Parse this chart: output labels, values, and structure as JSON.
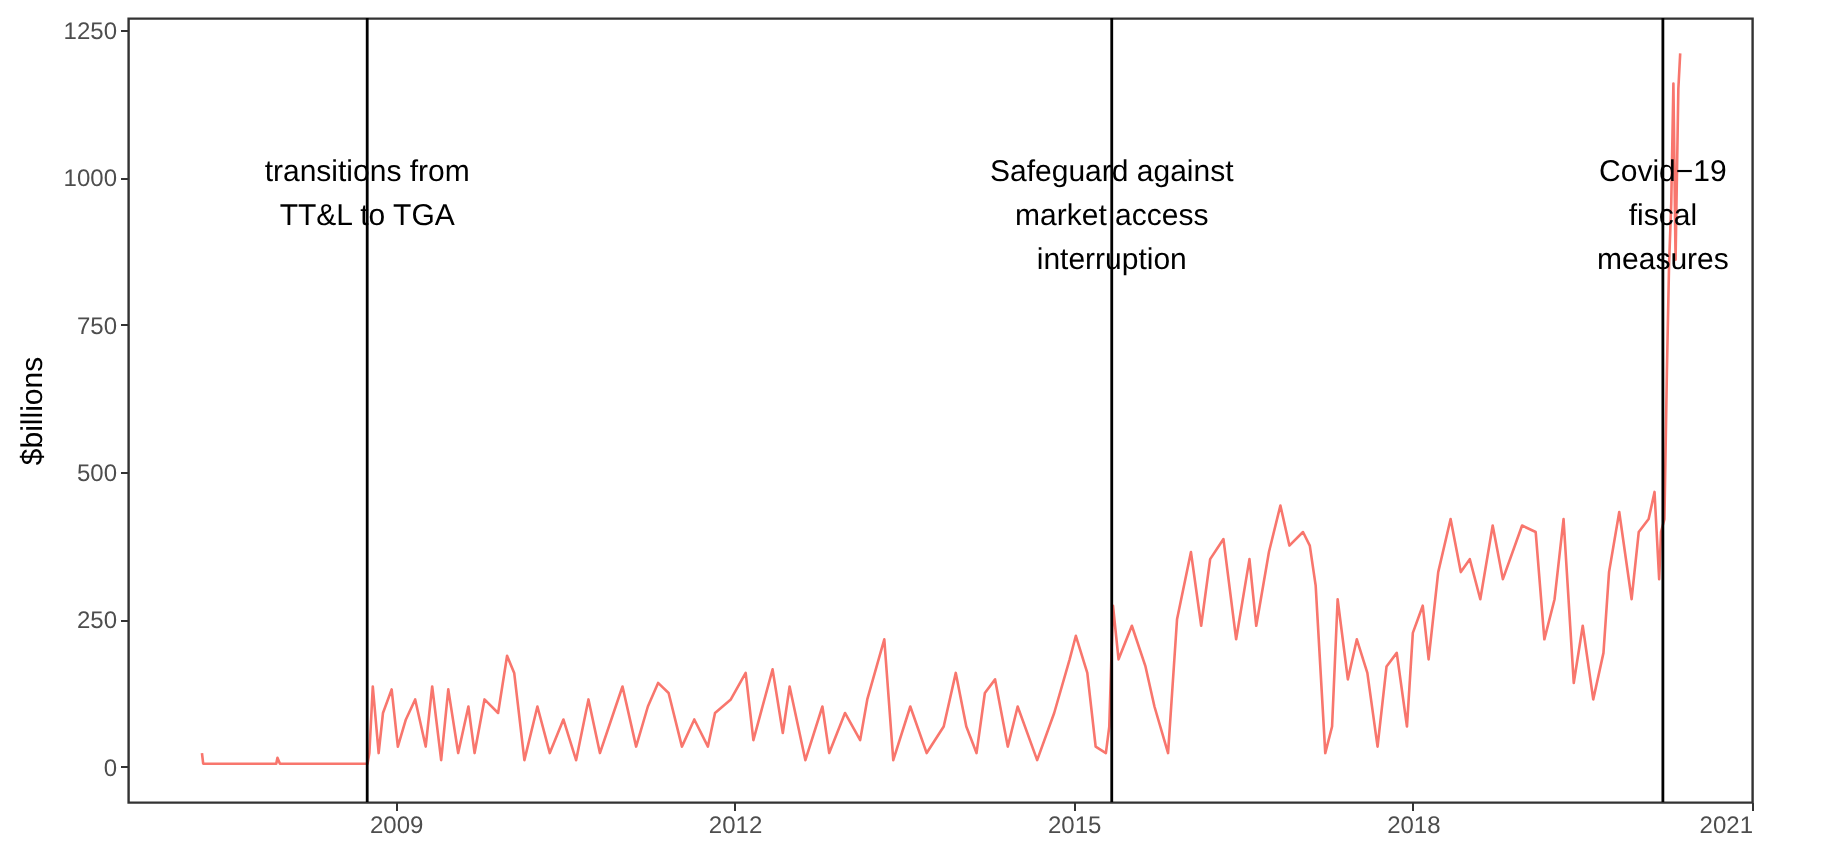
{
  "chart_data": {
    "type": "line",
    "ylabel": "$billions",
    "x": [
      "2007-04-16",
      "2007-04-20",
      "2007-12-12",
      "2007-12-16",
      "2007-12-24",
      "2008-10-02",
      "2008-10-08",
      "2008-10-19",
      "2008-11-07",
      "2008-11-21",
      "2008-12-19",
      "2009-01-08",
      "2009-02-03",
      "2009-03-05",
      "2009-04-08",
      "2009-04-29",
      "2009-05-28",
      "2009-06-20",
      "2009-07-22",
      "2009-08-24",
      "2009-09-13",
      "2009-10-15",
      "2009-11-28",
      "2009-12-27",
      "2010-01-19",
      "2010-02-21",
      "2010-04-04",
      "2010-05-14",
      "2010-06-27",
      "2010-08-07",
      "2010-09-16",
      "2010-10-23",
      "2010-12-13",
      "2011-01-04",
      "2011-02-17",
      "2011-03-27",
      "2011-04-29",
      "2011-06-02",
      "2011-07-15",
      "2011-08-24",
      "2011-10-07",
      "2011-10-30",
      "2011-12-20",
      "2012-02-06",
      "2012-03-02",
      "2012-05-03",
      "2012-06-05",
      "2012-06-27",
      "2012-08-17",
      "2012-10-11",
      "2012-11-02",
      "2012-12-23",
      "2013-02-10",
      "2013-03-05",
      "2013-04-29",
      "2013-05-28",
      "2013-07-22",
      "2013-09-13",
      "2013-11-07",
      "2013-12-16",
      "2014-01-19",
      "2014-02-21",
      "2014-03-20",
      "2014-04-22",
      "2014-06-02",
      "2014-07-04",
      "2014-09-05",
      "2014-10-30",
      "2014-12-19",
      "2015-01-08",
      "2015-02-14",
      "2015-03-13",
      "2015-04-15",
      "2015-04-26",
      "2015-05-08",
      "2015-05-26",
      "2015-07-08",
      "2015-08-21",
      "2015-09-19",
      "2015-11-02",
      "2015-12-01",
      "2016-01-15",
      "2016-02-17",
      "2016-03-17",
      "2016-04-29",
      "2016-06-09",
      "2016-07-22",
      "2016-08-13",
      "2016-09-23",
      "2016-10-30",
      "2016-11-28",
      "2017-01-11",
      "2017-02-02",
      "2017-02-21",
      "2017-03-24",
      "2017-04-15",
      "2017-05-03",
      "2017-06-05",
      "2017-07-04",
      "2017-08-07",
      "2017-09-09",
      "2017-10-08",
      "2017-11-10",
      "2017-12-13",
      "2018-01-01",
      "2018-02-02",
      "2018-02-21",
      "2018-03-24",
      "2018-05-03",
      "2018-06-05",
      "2018-07-04",
      "2018-08-07",
      "2018-09-16",
      "2018-10-19",
      "2018-12-20",
      "2019-02-02",
      "2019-03-02",
      "2019-04-04",
      "2019-05-03",
      "2019-06-05",
      "2019-07-04",
      "2019-08-07",
      "2019-09-09",
      "2019-09-27",
      "2019-10-30",
      "2019-12-09",
      "2020-01-01",
      "2020-02-02",
      "2020-02-21",
      "2020-03-07",
      "2020-03-13",
      "2020-03-24",
      "2020-04-01",
      "2020-04-08",
      "2020-04-15",
      "2020-04-22",
      "2020-04-29",
      "2020-05-08",
      "2020-05-14"
    ],
    "series": [
      {
        "color": "#f8766d",
        "values": [
          23,
          5,
          5,
          15,
          5,
          5,
          23,
          136,
          23,
          91,
          131,
          34,
          80,
          114,
          34,
          136,
          11,
          131,
          23,
          102,
          23,
          114,
          91,
          188,
          159,
          11,
          102,
          23,
          80,
          11,
          114,
          23,
          102,
          136,
          34,
          102,
          142,
          125,
          34,
          80,
          34,
          91,
          114,
          159,
          45,
          165,
          57,
          136,
          11,
          102,
          23,
          91,
          45,
          114,
          216,
          11,
          102,
          23,
          68,
          159,
          68,
          23,
          125,
          148,
          34,
          102,
          11,
          91,
          182,
          222,
          159,
          34,
          23,
          68,
          273,
          182,
          239,
          170,
          102,
          23,
          250,
          364,
          239,
          352,
          386,
          216,
          352,
          239,
          364,
          443,
          375,
          398,
          375,
          307,
          23,
          68,
          284,
          148,
          216,
          159,
          34,
          170,
          193,
          68,
          227,
          273,
          182,
          330,
          420,
          330,
          352,
          284,
          409,
          318,
          409,
          398,
          216,
          284,
          420,
          142,
          239,
          114,
          193,
          330,
          432,
          284,
          398,
          420,
          466,
          318,
          398,
          420,
          670,
          852,
          955,
          1159,
          860,
          1150,
          1210
        ]
      }
    ],
    "xlim": [
      "2006-08-20",
      "2021-01-01"
    ],
    "xticks": [
      "2009",
      "2012",
      "2015",
      "2018",
      "2021"
    ],
    "ylim": [
      -60,
      1270
    ],
    "yticks": [
      0,
      250,
      500,
      750,
      1000,
      1250
    ],
    "ref_lines": [
      {
        "axis": "x",
        "value": "2008-10-01",
        "label": "transitions from\nTT&L to TGA",
        "color": "#000000"
      },
      {
        "axis": "x",
        "value": "2015-05-04",
        "label": "Safeguard against\nmarket access\ninterruption",
        "color": "#000000"
      },
      {
        "axis": "x",
        "value": "2020-03-19",
        "label": "Covid−19\nfiscal\nmeasures",
        "color": "#000000"
      }
    ],
    "grid": false
  }
}
